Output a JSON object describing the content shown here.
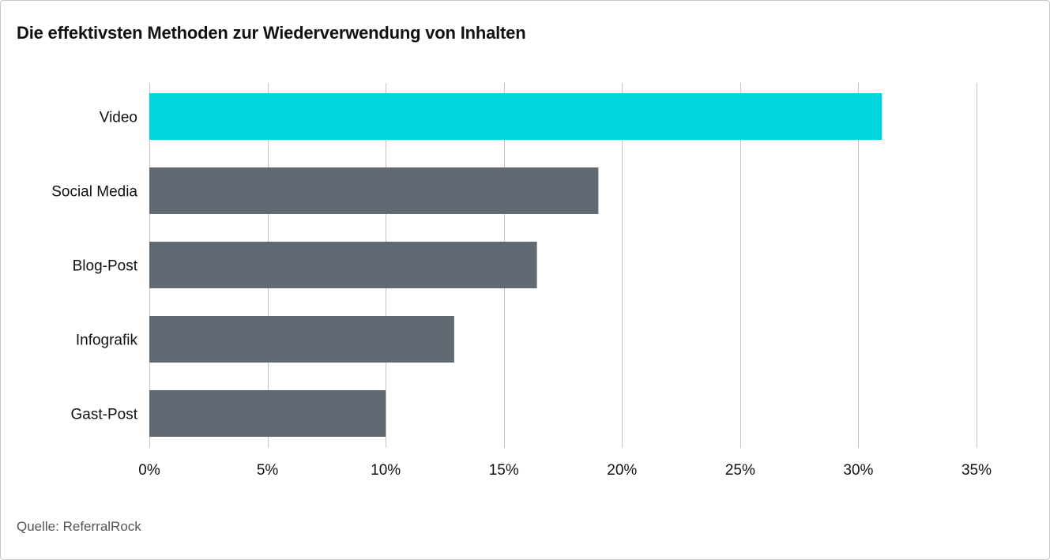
{
  "chart_data": {
    "type": "bar",
    "orientation": "horizontal",
    "title": "Die effektivsten Methoden zur Wiederverwendung von Inhalten",
    "categories": [
      "Video",
      "Social Media",
      "Blog-Post",
      "Infografik",
      "Gast-Post"
    ],
    "values": [
      31,
      19,
      16.4,
      12.9,
      10
    ],
    "xlim": [
      0,
      35
    ],
    "xticks": [
      0,
      5,
      10,
      15,
      20,
      25,
      30,
      35
    ],
    "xtick_labels": [
      "0%",
      "5%",
      "10%",
      "15%",
      "20%",
      "25%",
      "30%",
      "35%"
    ],
    "xlabel": "",
    "ylabel": "",
    "grid": true,
    "colors": {
      "highlight": "#00d4de",
      "default": "#616a72",
      "grid": "#c4c4c4"
    },
    "highlight_index": 0
  },
  "source": "Quelle: ReferralRock"
}
